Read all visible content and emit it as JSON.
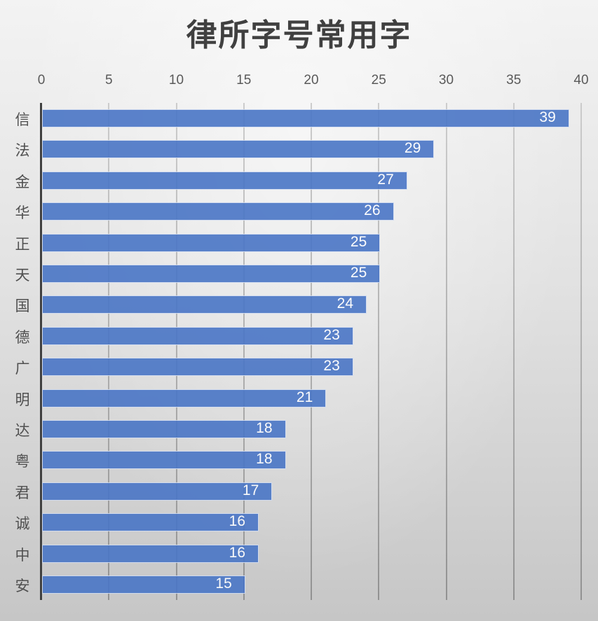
{
  "chart_data": {
    "type": "bar",
    "orientation": "horizontal",
    "title": "律所字号常用字",
    "xlabel": "",
    "ylabel": "",
    "xlim": [
      0,
      40
    ],
    "x_ticks": [
      "0",
      "5",
      "10",
      "15",
      "20",
      "25",
      "30",
      "35",
      "40"
    ],
    "grid": true,
    "legend": "none",
    "data_labels": true,
    "bar_color": "#4a76c6",
    "categories": [
      "信",
      "法",
      "金",
      "华",
      "正",
      "天",
      "国",
      "德",
      "广",
      "明",
      "达",
      "粤",
      "君",
      "诚",
      "中",
      "安"
    ],
    "values": [
      39,
      29,
      27,
      26,
      25,
      25,
      24,
      23,
      23,
      21,
      18,
      18,
      17,
      16,
      16,
      15
    ]
  }
}
